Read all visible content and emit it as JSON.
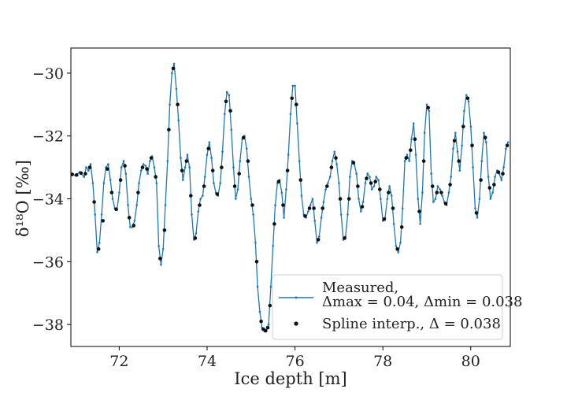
{
  "chart_data": {
    "type": "line",
    "title": "",
    "xlabel": "Ice depth [m]",
    "ylabel": "δ¹⁸O [‰]",
    "xlim": [
      70.9,
      80.9
    ],
    "ylim": [
      -38.7,
      -29.2
    ],
    "xticks": [
      72,
      74,
      76,
      78,
      80
    ],
    "yticks": [
      -38,
      -36,
      -34,
      -32,
      -30
    ],
    "xtick_labels": [
      "72",
      "74",
      "76",
      "78",
      "80"
    ],
    "ytick_labels": [
      "−38",
      "−36",
      "−34",
      "−32",
      "−30"
    ],
    "grid": false,
    "legend_position": "bottom-right",
    "series": [
      {
        "name": "Measured, Δmax = 0.04, Δmin = 0.038",
        "legend_line1": "Measured,",
        "legend_line2": "Δmax = 0.04, Δmin = 0.038",
        "style": "line-with-small-markers",
        "color": "#1f77b4",
        "points": [
          [
            70.9,
            -33.2
          ],
          [
            71.0,
            -33.25
          ],
          [
            71.1,
            -33.15
          ],
          [
            71.2,
            -33.3
          ],
          [
            71.25,
            -33.0
          ],
          [
            71.3,
            -33.1
          ],
          [
            71.35,
            -32.9
          ],
          [
            71.4,
            -33.5
          ],
          [
            71.45,
            -34.5
          ],
          [
            71.5,
            -35.7
          ],
          [
            71.55,
            -35.4
          ],
          [
            71.6,
            -34.5
          ],
          [
            71.65,
            -33.5
          ],
          [
            71.7,
            -33.0
          ],
          [
            71.75,
            -32.9
          ],
          [
            71.8,
            -33.4
          ],
          [
            71.85,
            -34.0
          ],
          [
            71.9,
            -34.3
          ],
          [
            71.95,
            -34.35
          ],
          [
            72.0,
            -33.8
          ],
          [
            72.05,
            -33.0
          ],
          [
            72.1,
            -32.8
          ],
          [
            72.15,
            -33.2
          ],
          [
            72.2,
            -34.2
          ],
          [
            72.25,
            -34.9
          ],
          [
            72.3,
            -34.9
          ],
          [
            72.35,
            -34.7
          ],
          [
            72.4,
            -34.2
          ],
          [
            72.45,
            -33.5
          ],
          [
            72.5,
            -33.1
          ],
          [
            72.55,
            -32.9
          ],
          [
            72.6,
            -32.95
          ],
          [
            72.65,
            -33.2
          ],
          [
            72.7,
            -32.8
          ],
          [
            72.75,
            -32.65
          ],
          [
            72.8,
            -33.0
          ],
          [
            72.85,
            -33.5
          ],
          [
            72.9,
            -35.5
          ],
          [
            72.95,
            -36.1
          ],
          [
            73.0,
            -35.6
          ],
          [
            73.05,
            -34.2
          ],
          [
            73.1,
            -32.8
          ],
          [
            73.15,
            -31.0
          ],
          [
            73.2,
            -30.0
          ],
          [
            73.25,
            -29.7
          ],
          [
            73.3,
            -30.5
          ],
          [
            73.35,
            -31.5
          ],
          [
            73.4,
            -32.7
          ],
          [
            73.45,
            -33.4
          ],
          [
            73.5,
            -33.0
          ],
          [
            73.55,
            -32.6
          ],
          [
            73.6,
            -33.0
          ],
          [
            73.65,
            -34.5
          ],
          [
            73.7,
            -35.3
          ],
          [
            73.75,
            -35.1
          ],
          [
            73.8,
            -34.4
          ],
          [
            73.85,
            -34.0
          ],
          [
            73.9,
            -33.9
          ],
          [
            73.95,
            -33.3
          ],
          [
            74.0,
            -32.6
          ],
          [
            74.05,
            -32.2
          ],
          [
            74.1,
            -32.7
          ],
          [
            74.15,
            -33.5
          ],
          [
            74.2,
            -33.8
          ],
          [
            74.25,
            -33.9
          ],
          [
            74.3,
            -33.5
          ],
          [
            74.35,
            -32.5
          ],
          [
            74.4,
            -31.3
          ],
          [
            74.45,
            -30.6
          ],
          [
            74.5,
            -30.7
          ],
          [
            74.55,
            -31.8
          ],
          [
            74.6,
            -33.0
          ],
          [
            74.65,
            -34.0
          ],
          [
            74.7,
            -33.7
          ],
          [
            74.75,
            -32.8
          ],
          [
            74.8,
            -32.1
          ],
          [
            74.85,
            -32.0
          ],
          [
            74.9,
            -32.4
          ],
          [
            74.95,
            -33.3
          ],
          [
            75.0,
            -34.0
          ],
          [
            75.05,
            -34.5
          ],
          [
            75.1,
            -35.4
          ],
          [
            75.15,
            -36.8
          ],
          [
            75.2,
            -37.6
          ],
          [
            75.25,
            -38.1
          ],
          [
            75.3,
            -38.2
          ],
          [
            75.35,
            -38.2
          ],
          [
            75.4,
            -38.0
          ],
          [
            75.45,
            -36.8
          ],
          [
            75.5,
            -35.5
          ],
          [
            75.55,
            -34.2
          ],
          [
            75.6,
            -33.5
          ],
          [
            75.65,
            -33.4
          ],
          [
            75.7,
            -33.8
          ],
          [
            75.75,
            -34.6
          ],
          [
            75.8,
            -33.7
          ],
          [
            75.85,
            -32.6
          ],
          [
            75.9,
            -31.3
          ],
          [
            75.95,
            -30.4
          ],
          [
            76.0,
            -30.4
          ],
          [
            76.05,
            -31.6
          ],
          [
            76.1,
            -32.8
          ],
          [
            76.15,
            -33.9
          ],
          [
            76.2,
            -34.5
          ],
          [
            76.25,
            -34.6
          ],
          [
            76.3,
            -34.4
          ],
          [
            76.35,
            -34.2
          ],
          [
            76.4,
            -34.0
          ],
          [
            76.45,
            -34.7
          ],
          [
            76.5,
            -35.4
          ],
          [
            76.55,
            -35.2
          ],
          [
            76.6,
            -34.6
          ],
          [
            76.65,
            -34.1
          ],
          [
            76.7,
            -33.7
          ],
          [
            76.75,
            -33.5
          ],
          [
            76.8,
            -33.3
          ],
          [
            76.85,
            -32.8
          ],
          [
            76.9,
            -32.5
          ],
          [
            76.95,
            -32.9
          ],
          [
            77.0,
            -33.5
          ],
          [
            77.05,
            -34.5
          ],
          [
            77.1,
            -35.3
          ],
          [
            77.15,
            -35.2
          ],
          [
            77.2,
            -34.5
          ],
          [
            77.25,
            -33.3
          ],
          [
            77.3,
            -32.8
          ],
          [
            77.35,
            -32.9
          ],
          [
            77.4,
            -33.2
          ],
          [
            77.45,
            -34.0
          ],
          [
            77.5,
            -34.4
          ],
          [
            77.55,
            -34.1
          ],
          [
            77.6,
            -33.5
          ],
          [
            77.65,
            -33.2
          ],
          [
            77.7,
            -33.3
          ],
          [
            77.75,
            -33.7
          ],
          [
            77.8,
            -33.6
          ],
          [
            77.85,
            -33.3
          ],
          [
            77.9,
            -33.4
          ],
          [
            77.95,
            -34.0
          ],
          [
            78.0,
            -34.7
          ],
          [
            78.05,
            -34.6
          ],
          [
            78.1,
            -34.0
          ],
          [
            78.15,
            -33.6
          ],
          [
            78.2,
            -33.9
          ],
          [
            78.25,
            -34.8
          ],
          [
            78.3,
            -35.5
          ],
          [
            78.35,
            -35.7
          ],
          [
            78.4,
            -35.4
          ],
          [
            78.45,
            -34.3
          ],
          [
            78.5,
            -32.8
          ],
          [
            78.55,
            -32.6
          ],
          [
            78.6,
            -32.8
          ],
          [
            78.65,
            -32.1
          ],
          [
            78.7,
            -31.6
          ],
          [
            78.75,
            -32.6
          ],
          [
            78.8,
            -34.0
          ],
          [
            78.85,
            -34.8
          ],
          [
            78.9,
            -33.8
          ],
          [
            78.95,
            -31.9
          ],
          [
            79.0,
            -31.0
          ],
          [
            79.05,
            -31.2
          ],
          [
            79.1,
            -33.2
          ],
          [
            79.15,
            -34.1
          ],
          [
            79.2,
            -34.0
          ],
          [
            79.25,
            -33.6
          ],
          [
            79.3,
            -33.7
          ],
          [
            79.35,
            -33.9
          ],
          [
            79.4,
            -34.1
          ],
          [
            79.45,
            -34.2
          ],
          [
            79.5,
            -33.8
          ],
          [
            79.55,
            -33.3
          ],
          [
            79.6,
            -32.4
          ],
          [
            79.65,
            -31.9
          ],
          [
            79.7,
            -32.5
          ],
          [
            79.75,
            -33.1
          ],
          [
            79.8,
            -32.3
          ],
          [
            79.85,
            -31.2
          ],
          [
            79.9,
            -30.7
          ],
          [
            79.95,
            -30.9
          ],
          [
            80.0,
            -31.7
          ],
          [
            80.05,
            -33.0
          ],
          [
            80.1,
            -34.3
          ],
          [
            80.15,
            -34.6
          ],
          [
            80.2,
            -34.0
          ],
          [
            80.25,
            -32.8
          ],
          [
            80.3,
            -31.9
          ],
          [
            80.35,
            -32.2
          ],
          [
            80.4,
            -33.3
          ],
          [
            80.45,
            -34.0
          ],
          [
            80.5,
            -33.8
          ],
          [
            80.55,
            -33.3
          ],
          [
            80.6,
            -33.1
          ],
          [
            80.65,
            -33.2
          ],
          [
            80.7,
            -33.4
          ],
          [
            80.75,
            -33.0
          ],
          [
            80.8,
            -32.4
          ],
          [
            80.85,
            -32.2
          ]
        ]
      },
      {
        "name": "Spline interp., Δ = 0.038",
        "legend_line1": "Spline interp., Δ = 0.038",
        "style": "markers",
        "color": "#111111",
        "points": [
          [
            70.93,
            -33.22
          ],
          [
            71.03,
            -33.24
          ],
          [
            71.13,
            -33.18
          ],
          [
            71.23,
            -33.2
          ],
          [
            71.33,
            -33.0
          ],
          [
            71.43,
            -34.1
          ],
          [
            71.53,
            -35.6
          ],
          [
            71.63,
            -34.7
          ],
          [
            71.73,
            -33.05
          ],
          [
            71.83,
            -33.8
          ],
          [
            71.93,
            -34.33
          ],
          [
            72.03,
            -33.4
          ],
          [
            72.13,
            -32.95
          ],
          [
            72.23,
            -34.6
          ],
          [
            72.33,
            -34.85
          ],
          [
            72.43,
            -33.8
          ],
          [
            72.53,
            -33.0
          ],
          [
            72.63,
            -33.05
          ],
          [
            72.73,
            -32.7
          ],
          [
            72.83,
            -33.3
          ],
          [
            72.93,
            -35.9
          ],
          [
            73.03,
            -35.0
          ],
          [
            73.13,
            -31.8
          ],
          [
            73.23,
            -29.85
          ],
          [
            73.33,
            -31.0
          ],
          [
            73.43,
            -33.1
          ],
          [
            73.53,
            -32.8
          ],
          [
            73.63,
            -33.9
          ],
          [
            73.73,
            -35.25
          ],
          [
            73.83,
            -34.2
          ],
          [
            73.93,
            -33.6
          ],
          [
            74.03,
            -32.4
          ],
          [
            74.13,
            -33.1
          ],
          [
            74.23,
            -33.85
          ],
          [
            74.33,
            -33.0
          ],
          [
            74.43,
            -30.9
          ],
          [
            74.53,
            -31.2
          ],
          [
            74.63,
            -33.6
          ],
          [
            74.73,
            -33.2
          ],
          [
            74.83,
            -32.05
          ],
          [
            74.93,
            -32.8
          ],
          [
            75.03,
            -34.2
          ],
          [
            75.13,
            -36.0
          ],
          [
            75.23,
            -37.9
          ],
          [
            75.28,
            -38.15
          ],
          [
            75.33,
            -38.2
          ],
          [
            75.38,
            -38.1
          ],
          [
            75.43,
            -37.4
          ],
          [
            75.53,
            -34.8
          ],
          [
            75.63,
            -33.45
          ],
          [
            75.73,
            -34.2
          ],
          [
            75.83,
            -33.1
          ],
          [
            75.93,
            -30.8
          ],
          [
            76.03,
            -31.0
          ],
          [
            76.13,
            -33.4
          ],
          [
            76.23,
            -34.55
          ],
          [
            76.33,
            -34.3
          ],
          [
            76.43,
            -34.3
          ],
          [
            76.53,
            -35.3
          ],
          [
            76.63,
            -34.3
          ],
          [
            76.73,
            -33.6
          ],
          [
            76.83,
            -33.0
          ],
          [
            76.93,
            -32.7
          ],
          [
            77.03,
            -34.0
          ],
          [
            77.13,
            -35.25
          ],
          [
            77.23,
            -34.0
          ],
          [
            77.33,
            -32.85
          ],
          [
            77.43,
            -33.6
          ],
          [
            77.53,
            -34.25
          ],
          [
            77.63,
            -33.35
          ],
          [
            77.73,
            -33.5
          ],
          [
            77.83,
            -33.45
          ],
          [
            77.93,
            -33.7
          ],
          [
            78.03,
            -34.65
          ],
          [
            78.13,
            -33.8
          ],
          [
            78.23,
            -34.3
          ],
          [
            78.33,
            -35.6
          ],
          [
            78.43,
            -34.9
          ],
          [
            78.53,
            -32.7
          ],
          [
            78.63,
            -32.45
          ],
          [
            78.73,
            -32.1
          ],
          [
            78.83,
            -34.4
          ],
          [
            78.93,
            -32.8
          ],
          [
            79.03,
            -31.1
          ],
          [
            79.13,
            -33.6
          ],
          [
            79.23,
            -33.8
          ],
          [
            79.33,
            -33.8
          ],
          [
            79.43,
            -34.15
          ],
          [
            79.53,
            -33.55
          ],
          [
            79.63,
            -32.15
          ],
          [
            79.73,
            -32.8
          ],
          [
            79.83,
            -31.7
          ],
          [
            79.93,
            -30.8
          ],
          [
            80.03,
            -32.3
          ],
          [
            80.13,
            -34.45
          ],
          [
            80.23,
            -33.4
          ],
          [
            80.33,
            -32.05
          ],
          [
            80.43,
            -33.65
          ],
          [
            80.53,
            -33.55
          ],
          [
            80.63,
            -33.15
          ],
          [
            80.73,
            -33.2
          ],
          [
            80.83,
            -32.3
          ]
        ]
      }
    ]
  }
}
